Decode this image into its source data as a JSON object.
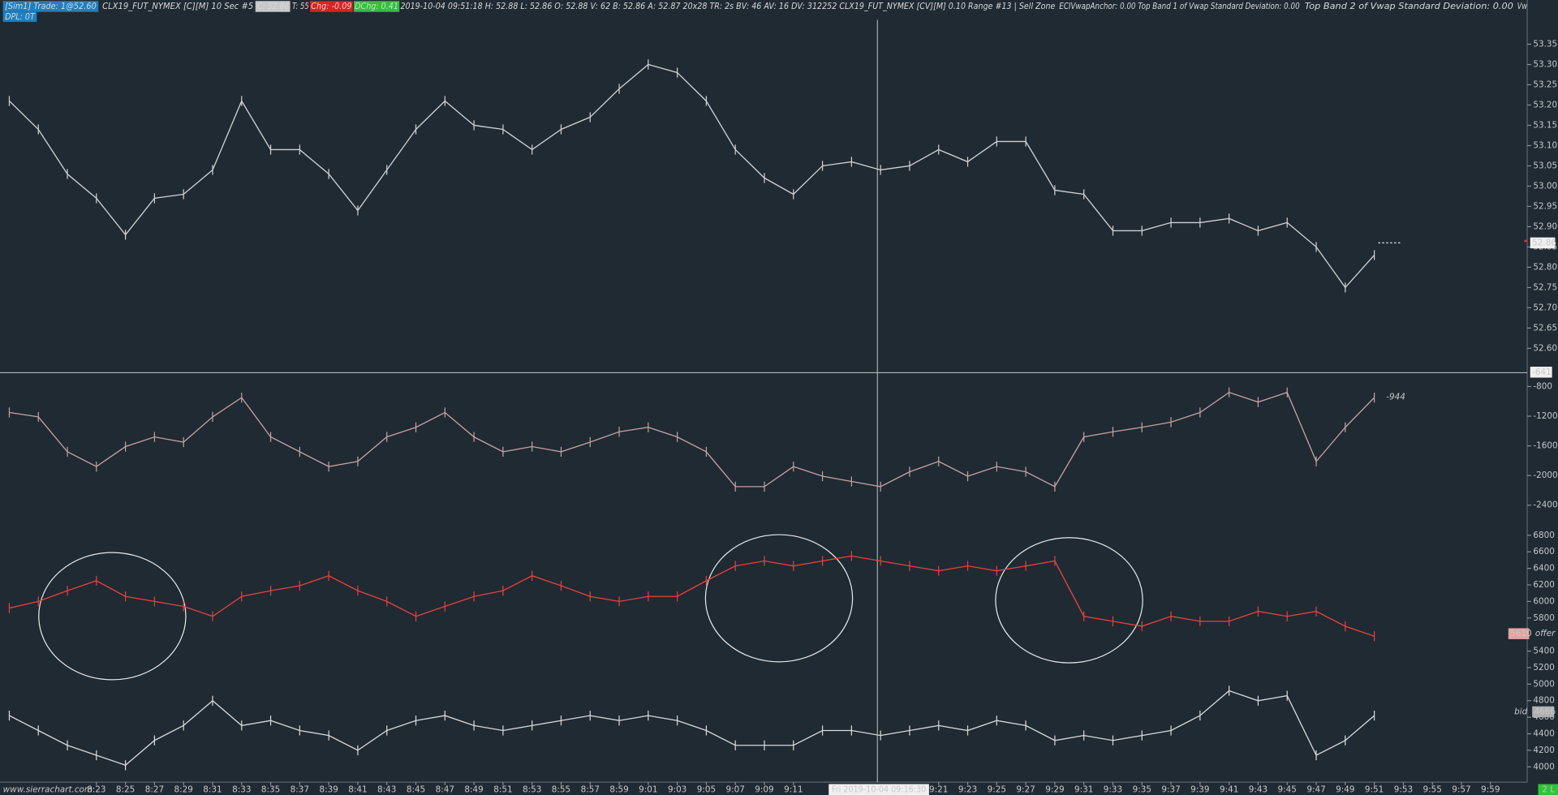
{
  "header": {
    "segments": [
      "[Sim1]  Trade: 1@52.60",
      "CLX19_FUT_NYMEX [C][M]  10 Sec   #5",
      "C: 52.86",
      "T: 55",
      "Chg: -0.09",
      "DChg: 0.41",
      "2019-10-04 09:51:18 H: 52.88 L: 52.86 O: 52.88 V: 62 B: 52.86 A: 52.87 20x28 TR: 2s BV: 46 AV: 16 DV: 312252 CLX19_FUT_NYMEX [CV][M]  0.10 Range  #13 | Sell Zone",
      "ECIVwapAnchor: 0.00  Top Band 1 of Vwap Standard Deviation: 0.00",
      "Top Band 2 of Vwap Standard Deviation: 0.00",
      "Vw"
    ],
    "dpl": "DPL: 0T"
  },
  "crosshair": {
    "time": "Fri 2019-10-04  09:16:30",
    "value": -641
  },
  "footer": {
    "site": "www.sierrachart.com",
    "status": "2 L"
  },
  "chart_data": [
    {
      "type": "line",
      "color": "#d0d0d0",
      "x": [
        497,
        499,
        501,
        503,
        505,
        507,
        509,
        511,
        513,
        515,
        517,
        519,
        521,
        523,
        525,
        527,
        529,
        531,
        533,
        535,
        537,
        539,
        541,
        543,
        545,
        547,
        549,
        551,
        553,
        555,
        557,
        559,
        561,
        563,
        565,
        567,
        569,
        571,
        573,
        575,
        577,
        579,
        581,
        583,
        585,
        587,
        589,
        591
      ],
      "values": [
        53.21,
        53.14,
        53.03,
        52.97,
        52.88,
        52.97,
        52.98,
        53.04,
        53.21,
        53.09,
        53.09,
        53.03,
        52.94,
        53.04,
        53.14,
        53.21,
        53.15,
        53.14,
        53.09,
        53.14,
        53.17,
        53.24,
        53.3,
        53.28,
        53.21,
        53.09,
        53.02,
        52.98,
        53.05,
        53.06,
        53.04,
        53.05,
        53.09,
        53.06,
        53.11,
        53.11,
        52.99,
        52.98,
        52.89,
        52.89,
        52.91,
        52.91,
        52.92,
        52.89,
        52.91,
        52.85,
        52.75,
        52.83
      ],
      "last_value": 52.86,
      "xlim": [
        496.36,
        601.53
      ],
      "ylim": [
        52.54,
        53.41
      ],
      "yticks": [
        {
          "value": 52.6,
          "label": "52.60"
        },
        {
          "value": 52.65,
          "label": "52.65"
        },
        {
          "value": 52.7,
          "label": "52.70"
        },
        {
          "value": 52.75,
          "label": "52.75"
        },
        {
          "value": 52.8,
          "label": "52.80"
        },
        {
          "value": 52.85,
          "label": "52.85"
        },
        {
          "value": 52.9,
          "label": "52.90"
        },
        {
          "value": 52.95,
          "label": "52.95"
        },
        {
          "value": 53.0,
          "label": "53.00"
        },
        {
          "value": 53.05,
          "label": "53.05"
        },
        {
          "value": 53.1,
          "label": "53.10"
        },
        {
          "value": 53.15,
          "label": "53.15"
        },
        {
          "value": 53.2,
          "label": "53.20"
        },
        {
          "value": 53.25,
          "label": "53.25"
        },
        {
          "value": 53.3,
          "label": "53.30"
        },
        {
          "value": 53.35,
          "label": "53.35"
        }
      ]
    },
    {
      "type": "line",
      "color": "#c4a0a0",
      "x": [
        497,
        499,
        501,
        503,
        505,
        507,
        509,
        511,
        513,
        515,
        517,
        519,
        521,
        523,
        525,
        527,
        529,
        531,
        533,
        535,
        537,
        539,
        541,
        543,
        545,
        547,
        549,
        551,
        553,
        555,
        557,
        559,
        561,
        563,
        565,
        567,
        569,
        571,
        573,
        575,
        577,
        579,
        581,
        583,
        585,
        587,
        589,
        591
      ],
      "values": [
        -1150,
        -1210,
        -1680,
        -1880,
        -1610,
        -1480,
        -1550,
        -1210,
        -950,
        -1480,
        -1680,
        -1880,
        -1810,
        -1480,
        -1350,
        -1150,
        -1480,
        -1680,
        -1610,
        -1680,
        -1550,
        -1410,
        -1350,
        -1480,
        -1680,
        -2150,
        -2150,
        -1880,
        -2010,
        -2080,
        -2150,
        -1950,
        -1810,
        -2010,
        -1880,
        -1950,
        -2150,
        -1480,
        -1410,
        -1350,
        -1280,
        -1150,
        -880,
        -1010,
        -880,
        -1810,
        -1350,
        -950
      ],
      "last_value": -944,
      "last_color": "#e23a3a",
      "xlim": [
        496.36,
        601.53
      ],
      "ylim": [
        -2690,
        -640
      ],
      "yticks": [
        -800,
        -1200,
        -1600,
        -2000,
        -2400
      ]
    },
    {
      "type": "line",
      "series": [
        {
          "name": "offer",
          "color": "#e8403e",
          "last_value": 5610,
          "values": [
            5920,
            6000,
            6130,
            6250,
            6060,
            6000,
            5940,
            5820,
            6060,
            6130,
            6190,
            6310,
            6130,
            6000,
            5820,
            5940,
            6060,
            6130,
            6310,
            6190,
            6060,
            6000,
            6060,
            6060,
            6250,
            6430,
            6490,
            6430,
            6490,
            6550,
            6490,
            6430,
            6370,
            6430,
            6370,
            6430,
            6490,
            5820,
            5760,
            5700,
            5820,
            5760,
            5760,
            5880,
            5820,
            5880,
            5700,
            5580
          ]
        },
        {
          "name": "bid",
          "color": "#d8d8d8",
          "last_value": 4666,
          "values": [
            4620,
            4440,
            4260,
            4140,
            4020,
            4320,
            4500,
            4800,
            4500,
            4560,
            4440,
            4380,
            4200,
            4440,
            4560,
            4620,
            4500,
            4440,
            4500,
            4560,
            4620,
            4560,
            4620,
            4560,
            4440,
            4260,
            4260,
            4260,
            4440,
            4440,
            4380,
            4440,
            4500,
            4440,
            4560,
            4500,
            4320,
            4380,
            4320,
            4380,
            4440,
            4620,
            4920,
            4800,
            4860,
            4140,
            4320,
            4620
          ]
        }
      ],
      "x": [
        497,
        499,
        501,
        503,
        505,
        507,
        509,
        511,
        513,
        515,
        517,
        519,
        521,
        523,
        525,
        527,
        529,
        531,
        533,
        535,
        537,
        539,
        541,
        543,
        545,
        547,
        549,
        551,
        553,
        555,
        557,
        559,
        561,
        563,
        565,
        567,
        569,
        571,
        573,
        575,
        577,
        579,
        581,
        583,
        585,
        587,
        589,
        591
      ],
      "xlim": [
        496.36,
        601.53
      ],
      "ylim": [
        3840,
        6880
      ],
      "yticks": [
        4000,
        4200,
        4400,
        4600,
        4800,
        5000,
        5200,
        5400,
        5800,
        6000,
        6200,
        6400,
        6600,
        6800
      ],
      "xticks": [
        {
          "value": 503,
          "label": "8:23"
        },
        {
          "value": 505,
          "label": "8:25"
        },
        {
          "value": 507,
          "label": "8:27"
        },
        {
          "value": 509,
          "label": "8:29"
        },
        {
          "value": 511,
          "label": "8:31"
        },
        {
          "value": 513,
          "label": "8:33"
        },
        {
          "value": 515,
          "label": "8:35"
        },
        {
          "value": 517,
          "label": "8:37"
        },
        {
          "value": 519,
          "label": "8:39"
        },
        {
          "value": 521,
          "label": "8:41"
        },
        {
          "value": 523,
          "label": "8:43"
        },
        {
          "value": 525,
          "label": "8:45"
        },
        {
          "value": 527,
          "label": "8:47"
        },
        {
          "value": 529,
          "label": "8:49"
        },
        {
          "value": 531,
          "label": "8:51"
        },
        {
          "value": 533,
          "label": "8:53"
        },
        {
          "value": 535,
          "label": "8:55"
        },
        {
          "value": 537,
          "label": "8:57"
        },
        {
          "value": 539,
          "label": "8:59"
        },
        {
          "value": 541,
          "label": "9:01"
        },
        {
          "value": 543,
          "label": "9:03"
        },
        {
          "value": 545,
          "label": "9:05"
        },
        {
          "value": 547,
          "label": "9:07"
        },
        {
          "value": 549,
          "label": "9:09"
        },
        {
          "value": 551,
          "label": "9:11"
        },
        {
          "value": 561,
          "label": "9:21"
        },
        {
          "value": 563,
          "label": "9:23"
        },
        {
          "value": 565,
          "label": "9:25"
        },
        {
          "value": 567,
          "label": "9:27"
        },
        {
          "value": 569,
          "label": "9:29"
        },
        {
          "value": 571,
          "label": "9:31"
        },
        {
          "value": 573,
          "label": "9:33"
        },
        {
          "value": 575,
          "label": "9:35"
        },
        {
          "value": 577,
          "label": "9:37"
        },
        {
          "value": 579,
          "label": "9:39"
        },
        {
          "value": 581,
          "label": "9:41"
        },
        {
          "value": 583,
          "label": "9:43"
        },
        {
          "value": 585,
          "label": "9:45"
        },
        {
          "value": 587,
          "label": "9:47"
        },
        {
          "value": 589,
          "label": "9:49"
        },
        {
          "value": 591,
          "label": "9:51"
        },
        {
          "value": 593,
          "label": "9:53"
        },
        {
          "value": 595,
          "label": "9:55"
        },
        {
          "value": 597,
          "label": "9:57"
        },
        {
          "value": 599,
          "label": "9:59"
        }
      ]
    }
  ]
}
